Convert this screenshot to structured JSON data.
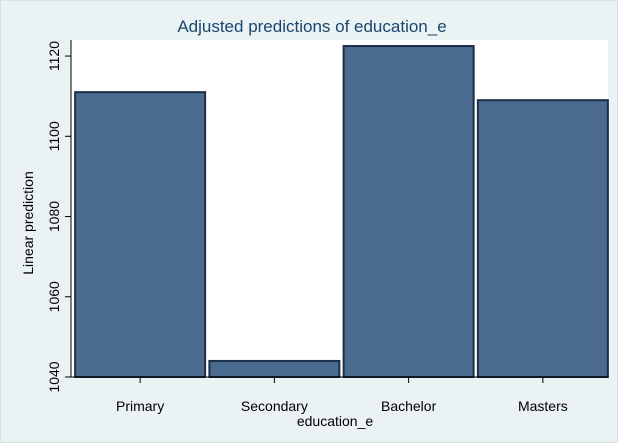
{
  "chart_data": {
    "type": "bar",
    "title": "Adjusted predictions of education_e",
    "xlabel": "education_e",
    "ylabel": "Linear prediction",
    "categories": [
      "Primary",
      "Secondary",
      "Bachelor",
      "Masters"
    ],
    "values": [
      1111,
      1044,
      1122.5,
      1109
    ],
    "ylim": [
      1040,
      1124
    ],
    "yticks": [
      1040,
      1060,
      1080,
      1100,
      1120
    ],
    "grid": false,
    "legend": "none",
    "colors": {
      "bar_fill": "#4a6a8e",
      "bar_stroke": "#1c2f48",
      "plot_background": "#ffffff",
      "outer_background": "#eaf2f3",
      "title_color": "#1a476f"
    }
  }
}
